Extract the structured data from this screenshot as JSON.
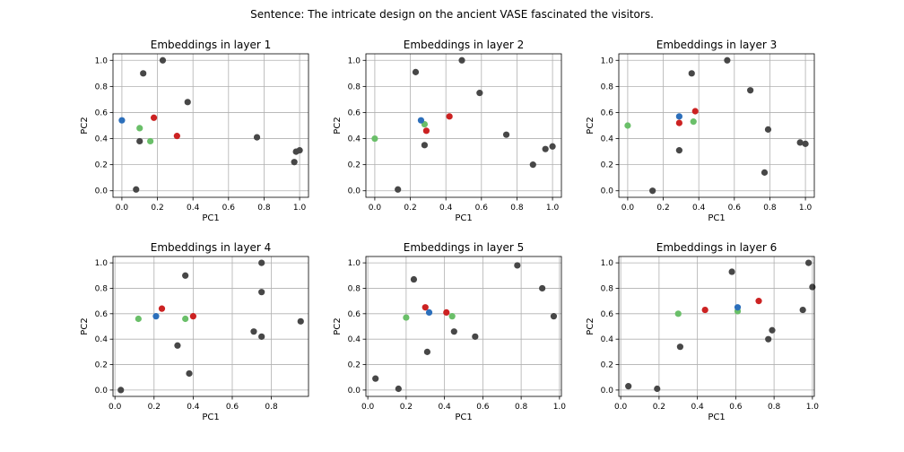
{
  "figure": {
    "suptitle": "Sentence: The intricate design on the ancient VASE fascinated the visitors."
  },
  "colors": {
    "other": "#474747",
    "green": "#6abf69",
    "blue": "#2c6fbb",
    "red": "#cc2222"
  },
  "chart_data": [
    {
      "type": "scatter",
      "title": "Embeddings in layer 1",
      "xlabel": "PC1",
      "ylabel": "PC2",
      "xlim": [
        -0.05,
        1.05
      ],
      "ylim": [
        -0.05,
        1.05
      ],
      "xticks": [
        0.0,
        0.2,
        0.4,
        0.6,
        0.8,
        1.0
      ],
      "yticks": [
        0.0,
        0.2,
        0.4,
        0.6,
        0.8,
        1.0
      ],
      "grid": true,
      "points": [
        {
          "x": 0.12,
          "y": 0.9,
          "color": "other"
        },
        {
          "x": 0.23,
          "y": 1.0,
          "color": "other"
        },
        {
          "x": 0.37,
          "y": 0.68,
          "color": "other"
        },
        {
          "x": 0.1,
          "y": 0.38,
          "color": "other"
        },
        {
          "x": 0.08,
          "y": 0.01,
          "color": "other"
        },
        {
          "x": 0.76,
          "y": 0.41,
          "color": "other"
        },
        {
          "x": 0.98,
          "y": 0.3,
          "color": "other"
        },
        {
          "x": 1.0,
          "y": 0.31,
          "color": "other"
        },
        {
          "x": 0.97,
          "y": 0.22,
          "color": "other"
        },
        {
          "x": 0.1,
          "y": 0.48,
          "color": "green"
        },
        {
          "x": 0.16,
          "y": 0.38,
          "color": "green"
        },
        {
          "x": 0.0,
          "y": 0.54,
          "color": "blue"
        },
        {
          "x": 0.18,
          "y": 0.56,
          "color": "red"
        },
        {
          "x": 0.31,
          "y": 0.42,
          "color": "red"
        }
      ]
    },
    {
      "type": "scatter",
      "title": "Embeddings in layer 2",
      "xlabel": "PC1",
      "ylabel": "PC2",
      "xlim": [
        -0.05,
        1.05
      ],
      "ylim": [
        -0.05,
        1.05
      ],
      "xticks": [
        0.0,
        0.2,
        0.4,
        0.6,
        0.8,
        1.0
      ],
      "yticks": [
        0.0,
        0.2,
        0.4,
        0.6,
        0.8,
        1.0
      ],
      "grid": true,
      "points": [
        {
          "x": 0.23,
          "y": 0.91,
          "color": "other"
        },
        {
          "x": 0.49,
          "y": 1.0,
          "color": "other"
        },
        {
          "x": 0.59,
          "y": 0.75,
          "color": "other"
        },
        {
          "x": 0.74,
          "y": 0.43,
          "color": "other"
        },
        {
          "x": 0.28,
          "y": 0.35,
          "color": "other"
        },
        {
          "x": 0.13,
          "y": 0.01,
          "color": "other"
        },
        {
          "x": 0.89,
          "y": 0.2,
          "color": "other"
        },
        {
          "x": 0.96,
          "y": 0.32,
          "color": "other"
        },
        {
          "x": 1.0,
          "y": 0.34,
          "color": "other"
        },
        {
          "x": 0.0,
          "y": 0.4,
          "color": "green"
        },
        {
          "x": 0.28,
          "y": 0.51,
          "color": "green"
        },
        {
          "x": 0.26,
          "y": 0.54,
          "color": "blue"
        },
        {
          "x": 0.29,
          "y": 0.46,
          "color": "red"
        },
        {
          "x": 0.42,
          "y": 0.57,
          "color": "red"
        }
      ]
    },
    {
      "type": "scatter",
      "title": "Embeddings in layer 3",
      "xlabel": "PC1",
      "ylabel": "PC2",
      "xlim": [
        -0.05,
        1.05
      ],
      "ylim": [
        -0.05,
        1.05
      ],
      "xticks": [
        0.0,
        0.2,
        0.4,
        0.6,
        0.8,
        1.0
      ],
      "yticks": [
        0.0,
        0.2,
        0.4,
        0.6,
        0.8,
        1.0
      ],
      "grid": true,
      "points": [
        {
          "x": 0.56,
          "y": 1.0,
          "color": "other"
        },
        {
          "x": 0.36,
          "y": 0.9,
          "color": "other"
        },
        {
          "x": 0.69,
          "y": 0.77,
          "color": "other"
        },
        {
          "x": 0.79,
          "y": 0.47,
          "color": "other"
        },
        {
          "x": 0.29,
          "y": 0.31,
          "color": "other"
        },
        {
          "x": 0.14,
          "y": 0.0,
          "color": "other"
        },
        {
          "x": 0.77,
          "y": 0.14,
          "color": "other"
        },
        {
          "x": 0.97,
          "y": 0.37,
          "color": "other"
        },
        {
          "x": 1.0,
          "y": 0.36,
          "color": "other"
        },
        {
          "x": 0.0,
          "y": 0.5,
          "color": "green"
        },
        {
          "x": 0.37,
          "y": 0.53,
          "color": "green"
        },
        {
          "x": 0.29,
          "y": 0.57,
          "color": "blue"
        },
        {
          "x": 0.29,
          "y": 0.52,
          "color": "red"
        },
        {
          "x": 0.38,
          "y": 0.61,
          "color": "red"
        }
      ]
    },
    {
      "type": "scatter",
      "title": "Embeddings in layer 4",
      "xlabel": "PC1",
      "ylabel": "PC2",
      "xlim": [
        -0.01,
        0.99
      ],
      "ylim": [
        -0.05,
        1.05
      ],
      "xticks": [
        0.0,
        0.2,
        0.4,
        0.6,
        0.8
      ],
      "yticks": [
        0.0,
        0.2,
        0.4,
        0.6,
        0.8,
        1.0
      ],
      "grid": true,
      "points": [
        {
          "x": 0.36,
          "y": 0.9,
          "color": "other"
        },
        {
          "x": 0.75,
          "y": 1.0,
          "color": "other"
        },
        {
          "x": 0.75,
          "y": 0.77,
          "color": "other"
        },
        {
          "x": 0.71,
          "y": 0.46,
          "color": "other"
        },
        {
          "x": 0.75,
          "y": 0.42,
          "color": "other"
        },
        {
          "x": 0.95,
          "y": 0.54,
          "color": "other"
        },
        {
          "x": 0.32,
          "y": 0.35,
          "color": "other"
        },
        {
          "x": 0.38,
          "y": 0.13,
          "color": "other"
        },
        {
          "x": 0.03,
          "y": 0.0,
          "color": "other"
        },
        {
          "x": 0.12,
          "y": 0.56,
          "color": "green"
        },
        {
          "x": 0.36,
          "y": 0.56,
          "color": "green"
        },
        {
          "x": 0.21,
          "y": 0.58,
          "color": "blue"
        },
        {
          "x": 0.24,
          "y": 0.64,
          "color": "red"
        },
        {
          "x": 0.4,
          "y": 0.58,
          "color": "red"
        }
      ]
    },
    {
      "type": "scatter",
      "title": "Embeddings in layer 5",
      "xlabel": "PC1",
      "ylabel": "PC2",
      "xlim": [
        -0.01,
        1.01
      ],
      "ylim": [
        -0.05,
        1.05
      ],
      "xticks": [
        0.0,
        0.2,
        0.4,
        0.6,
        0.8,
        1.0
      ],
      "yticks": [
        0.0,
        0.2,
        0.4,
        0.6,
        0.8,
        1.0
      ],
      "grid": true,
      "points": [
        {
          "x": 0.24,
          "y": 0.87,
          "color": "other"
        },
        {
          "x": 0.78,
          "y": 0.98,
          "color": "other"
        },
        {
          "x": 0.91,
          "y": 0.8,
          "color": "other"
        },
        {
          "x": 0.97,
          "y": 0.58,
          "color": "other"
        },
        {
          "x": 0.45,
          "y": 0.46,
          "color": "other"
        },
        {
          "x": 0.56,
          "y": 0.42,
          "color": "other"
        },
        {
          "x": 0.31,
          "y": 0.3,
          "color": "other"
        },
        {
          "x": 0.04,
          "y": 0.09,
          "color": "other"
        },
        {
          "x": 0.16,
          "y": 0.01,
          "color": "other"
        },
        {
          "x": 0.2,
          "y": 0.57,
          "color": "green"
        },
        {
          "x": 0.44,
          "y": 0.58,
          "color": "green"
        },
        {
          "x": 0.32,
          "y": 0.61,
          "color": "blue"
        },
        {
          "x": 0.3,
          "y": 0.65,
          "color": "red"
        },
        {
          "x": 0.41,
          "y": 0.61,
          "color": "red"
        }
      ]
    },
    {
      "type": "scatter",
      "title": "Embeddings in layer 6",
      "xlabel": "PC1",
      "ylabel": "PC2",
      "xlim": [
        -0.01,
        1.01
      ],
      "ylim": [
        -0.05,
        1.05
      ],
      "xticks": [
        0.0,
        0.2,
        0.4,
        0.6,
        0.8,
        1.0
      ],
      "yticks": [
        0.0,
        0.2,
        0.4,
        0.6,
        0.8,
        1.0
      ],
      "grid": true,
      "points": [
        {
          "x": 0.58,
          "y": 0.93,
          "color": "other"
        },
        {
          "x": 0.98,
          "y": 1.0,
          "color": "other"
        },
        {
          "x": 1.0,
          "y": 0.81,
          "color": "other"
        },
        {
          "x": 0.95,
          "y": 0.63,
          "color": "other"
        },
        {
          "x": 0.79,
          "y": 0.47,
          "color": "other"
        },
        {
          "x": 0.77,
          "y": 0.4,
          "color": "other"
        },
        {
          "x": 0.31,
          "y": 0.34,
          "color": "other"
        },
        {
          "x": 0.04,
          "y": 0.03,
          "color": "other"
        },
        {
          "x": 0.19,
          "y": 0.01,
          "color": "other"
        },
        {
          "x": 0.3,
          "y": 0.6,
          "color": "green"
        },
        {
          "x": 0.61,
          "y": 0.62,
          "color": "green"
        },
        {
          "x": 0.61,
          "y": 0.65,
          "color": "blue"
        },
        {
          "x": 0.44,
          "y": 0.63,
          "color": "red"
        },
        {
          "x": 0.72,
          "y": 0.7,
          "color": "red"
        }
      ]
    }
  ]
}
